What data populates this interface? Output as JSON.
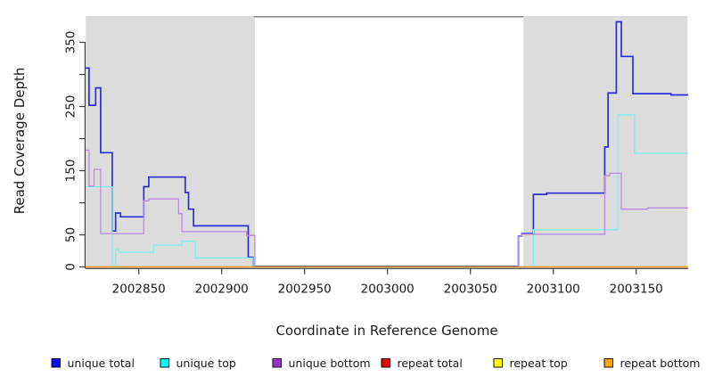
{
  "chart_data": {
    "type": "line",
    "step": true,
    "title": "",
    "xlabel": "Coordinate in Reference Genome",
    "ylabel": "Read Coverage Depth",
    "xlim": [
      2002818,
      2003181
    ],
    "ylim": [
      0,
      390
    ],
    "grid": false,
    "legend_position": "bottom",
    "x_ticks": [
      2002850,
      2002900,
      2002950,
      2003000,
      2003050,
      2003100,
      2003150
    ],
    "y_ticks": [
      0,
      50,
      100,
      150,
      200,
      250,
      300,
      350
    ],
    "y_tick_labels": [
      "0",
      "50",
      "",
      "150",
      "",
      "250",
      "",
      "350"
    ],
    "background_regions": [
      {
        "from": 2002818,
        "to": 2002920,
        "color": "#dcdcdc"
      },
      {
        "from": 2003082,
        "to": 2003181,
        "color": "#dcdcdc"
      }
    ],
    "gap_top_border": {
      "from": 2002920,
      "to": 2003082,
      "color": "#909090"
    },
    "series": [
      {
        "name": "unique total",
        "line_color": "#2d2dd8",
        "legend_color": "#0d0dee",
        "line_width": 1.7,
        "points": [
          [
            2002818,
            310
          ],
          [
            2002820,
            252
          ],
          [
            2002824,
            279
          ],
          [
            2002827,
            178
          ],
          [
            2002834,
            56
          ],
          [
            2002836,
            84
          ],
          [
            2002839,
            78
          ],
          [
            2002853,
            125
          ],
          [
            2002856,
            140
          ],
          [
            2002878,
            116
          ],
          [
            2002880,
            90
          ],
          [
            2002883,
            64
          ],
          [
            2002916,
            15
          ],
          [
            2002919,
            1
          ],
          [
            2003079,
            48
          ],
          [
            2003081,
            52
          ],
          [
            2003088,
            113
          ],
          [
            2003096,
            115
          ],
          [
            2003131,
            187
          ],
          [
            2003133,
            271
          ],
          [
            2003138,
            382
          ],
          [
            2003141,
            328
          ],
          [
            2003148,
            270
          ],
          [
            2003171,
            268
          ]
        ]
      },
      {
        "name": "unique top",
        "line_color": "#7deded",
        "legend_color": "#00ffff",
        "line_width": 1.3,
        "points": [
          [
            2002818,
            125
          ],
          [
            2002834,
            1
          ],
          [
            2002836,
            27
          ],
          [
            2002838,
            23
          ],
          [
            2002859,
            34
          ],
          [
            2002876,
            40
          ],
          [
            2002884,
            14
          ],
          [
            2002919,
            0
          ],
          [
            2003088,
            58
          ],
          [
            2003139,
            237
          ],
          [
            2003149,
            177
          ]
        ]
      },
      {
        "name": "unique bottom",
        "line_color": "#bc8ade",
        "legend_color": "#9932cc",
        "line_width": 1.3,
        "points": [
          [
            2002818,
            182
          ],
          [
            2002820,
            126
          ],
          [
            2002823,
            152
          ],
          [
            2002827,
            52
          ],
          [
            2002853,
            103
          ],
          [
            2002856,
            106
          ],
          [
            2002874,
            83
          ],
          [
            2002876,
            55
          ],
          [
            2002915,
            49
          ],
          [
            2002920,
            0
          ],
          [
            2003079,
            48
          ],
          [
            2003081,
            51
          ],
          [
            2003131,
            142
          ],
          [
            2003134,
            146
          ],
          [
            2003141,
            90
          ],
          [
            2003157,
            92
          ]
        ]
      },
      {
        "name": "repeat total",
        "line_color": "#dd2222",
        "legend_color": "#ee0000",
        "line_width": 1.3,
        "points": [
          [
            2002818,
            0
          ]
        ]
      },
      {
        "name": "repeat top",
        "line_color": "#f5f13a",
        "legend_color": "#ffff00",
        "line_width": 1.3,
        "points": [
          [
            2002818,
            0
          ]
        ]
      },
      {
        "name": "repeat bottom",
        "line_color": "#ff9e1b",
        "legend_color": "#ffa500",
        "line_width": 1.6,
        "points": [
          [
            2002818,
            0
          ]
        ]
      }
    ]
  },
  "style": {
    "axis_color": "#3c3c4c",
    "text_color": "#1a1a1a",
    "plot_bg": "#ffffff"
  }
}
